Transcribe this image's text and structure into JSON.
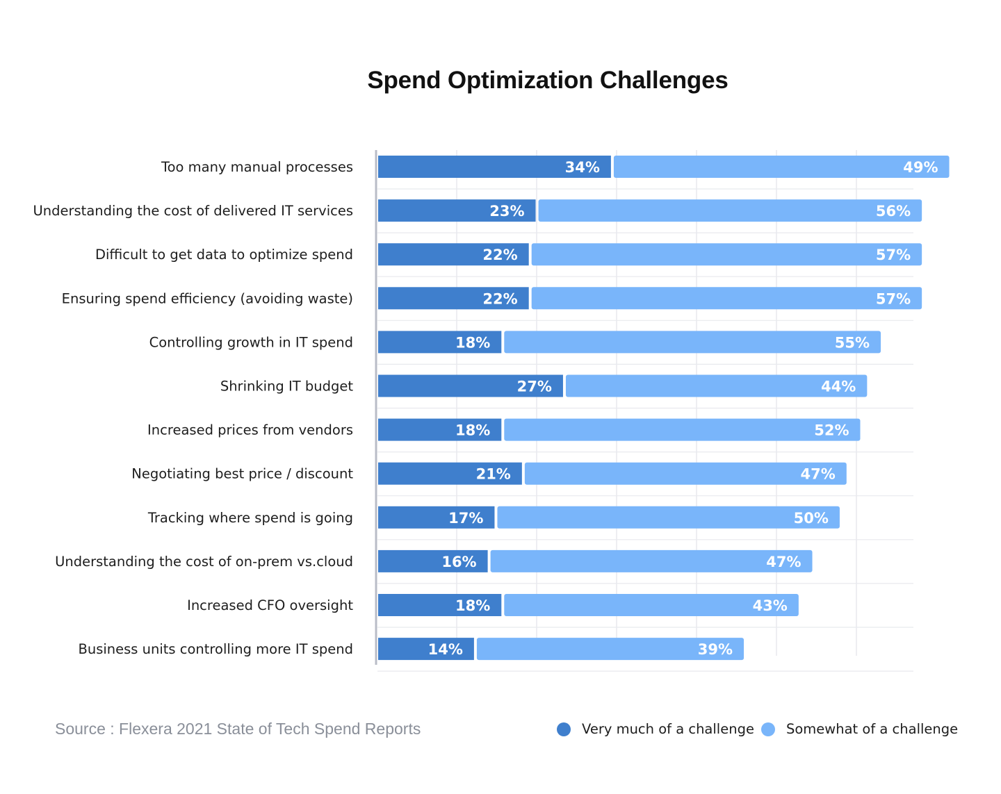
{
  "title": "Spend Optimization Challenges",
  "source": "Source : Flexera 2021 State of Tech Spend Reports",
  "colors": {
    "very": "#3f7fcd",
    "somewhat": "#79b5fa",
    "grid": "#e8e9ee",
    "axis": "#b9bcc7"
  },
  "chart_data": {
    "type": "bar",
    "orientation": "horizontal",
    "stacked": true,
    "title": "Spend Optimization Challenges",
    "categories": [
      "Too many manual processes",
      "Understanding the cost of delivered IT services",
      "Difficult to get data to optimize spend",
      "Ensuring spend efficiency (avoiding waste)",
      "Controlling growth in IT spend",
      "Shrinking IT budget",
      "Increased prices from vendors",
      "Negotiating best price / discount",
      "Tracking where spend is going",
      "Understanding the cost of on-prem vs.cloud",
      "Increased CFO oversight",
      "Business units controlling more IT spend"
    ],
    "series": [
      {
        "name": "Very much of a challenge",
        "values": [
          34,
          23,
          22,
          22,
          18,
          27,
          18,
          21,
          17,
          16,
          18,
          14
        ],
        "labels": [
          "34%",
          "23%",
          "22%",
          "22%",
          "18%",
          "27%",
          "18%",
          "21%",
          "17%",
          "16%",
          "18%",
          "14%"
        ]
      },
      {
        "name": "Somewhat of a challenge",
        "values": [
          49,
          56,
          57,
          57,
          55,
          44,
          52,
          47,
          50,
          47,
          43,
          39
        ],
        "labels": [
          "49%",
          "56%",
          "57%",
          "57%",
          "55%",
          "44%",
          "52%",
          "47%",
          "50%",
          "47%",
          "43%",
          "39%"
        ]
      }
    ],
    "xlim": [
      0,
      100
    ],
    "grid": true,
    "legend": "bottom-right"
  }
}
